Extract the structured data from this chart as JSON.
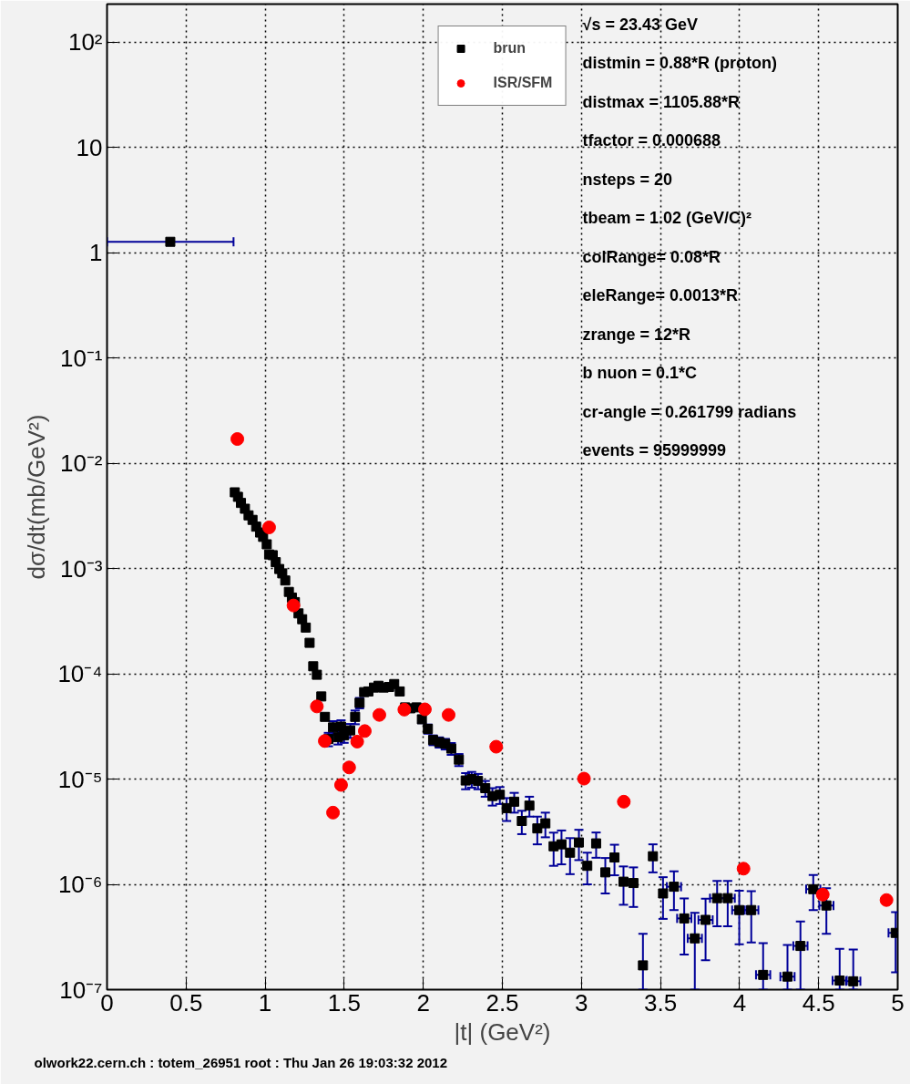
{
  "chart_data": {
    "type": "scatter",
    "xlabel": "|t| (GeV²)",
    "ylabel": "dσ/dt(mb/GeV²)",
    "xlim": [
      0,
      5
    ],
    "ylim": [
      1e-07,
      230
    ],
    "xticks": [
      0,
      0.5,
      1,
      1.5,
      2,
      2.5,
      3,
      3.5,
      4,
      4.5,
      5
    ],
    "yticks": [
      {
        "value": 1e-07,
        "label": "10⁻⁷"
      },
      {
        "value": 1e-06,
        "label": "10⁻⁶"
      },
      {
        "value": 1e-05,
        "label": "10⁻⁵"
      },
      {
        "value": 0.0001,
        "label": "10⁻⁴"
      },
      {
        "value": 0.001,
        "label": "10⁻³"
      },
      {
        "value": 0.01,
        "label": "10⁻²"
      },
      {
        "value": 0.1,
        "label": "10⁻¹"
      },
      1,
      10,
      {
        "value": 100,
        "label": "10²"
      }
    ],
    "log": true,
    "grid": true,
    "legend": "top",
    "annotations": [
      "√s    = 23.43 GeV",
      "distmin = 0.88*R (proton)",
      "distmax = 1105.88*R",
      "tfactor = 0.000688",
      "nsteps  = 20",
      "tbeam   = 1.02 (GeV/C)²",
      "colRange= 0.08*R",
      "eleRange= 0.0013*R",
      "zrange  = 12*R",
      "b nuon   = 0.1*C",
      "cr-angle = 0.261799 radians",
      "events  = 95999999",
      "olwork22.cern.ch : totem_26951 root : Thu Jan 26 19:03:32 2012"
    ],
    "series": [
      {
        "name": "brun",
        "marker": "square",
        "color": "#000000",
        "x": [
          0.4,
          0.808,
          0.828,
          0.847,
          0.872,
          0.895,
          0.92,
          0.943,
          0.968,
          0.987,
          1.01,
          1.025,
          1.048,
          1.067,
          1.089,
          1.108,
          1.127,
          1.15,
          1.169,
          1.188,
          1.211,
          1.234,
          1.257,
          1.281,
          1.304,
          1.327,
          1.355,
          1.378,
          1.4,
          1.429,
          1.461,
          1.48,
          1.499,
          1.538,
          1.569,
          1.597,
          1.626,
          1.653,
          1.688,
          1.717,
          1.749,
          1.784,
          1.816,
          1.851,
          1.885,
          1.918,
          1.957,
          1.991,
          2.029,
          2.062,
          2.101,
          2.139,
          2.177,
          2.225,
          2.268,
          2.306,
          2.346,
          2.392,
          2.437,
          2.484,
          2.527,
          2.575,
          2.623,
          2.671,
          2.721,
          2.772,
          2.824,
          2.874,
          2.928,
          2.984,
          3.037,
          3.093,
          3.151,
          3.209,
          3.266,
          3.329,
          3.389,
          3.452,
          3.516,
          3.585,
          3.65,
          3.717,
          3.785,
          3.858,
          3.925,
          3.998,
          4.074,
          4.149,
          4.303,
          4.385,
          4.466,
          4.549,
          4.633,
          4.719,
          4.987
        ],
        "values": [
          1.27,
          0.0053,
          0.0048,
          0.0042,
          0.0037,
          0.0032,
          0.0029,
          0.0025,
          0.0022,
          0.002,
          0.0017,
          0.00136,
          0.00134,
          0.00115,
          0.00099,
          0.0009,
          0.00077,
          0.0006,
          0.00053,
          0.00048,
          0.000375,
          0.00033,
          0.000275,
          0.000197,
          0.000118,
          9.8e-05,
          6.1e-05,
          3.9e-05,
          2.4e-05,
          3.1e-05,
          2.5e-05,
          3.15e-05,
          2.6e-05,
          2.9e-05,
          3.9e-05,
          5.3e-05,
          6.7e-05,
          6.8e-05,
          7.4e-05,
          7.7e-05,
          7.4e-05,
          7.5e-05,
          8e-05,
          6.8e-05,
          4.8e-05,
          4.7e-05,
          4.8e-05,
          3.7e-05,
          3e-05,
          2.35e-05,
          2.24e-05,
          2.16e-05,
          1.95e-05,
          1.53e-05,
          9.7e-06,
          1e-05,
          9.6e-06,
          8.2e-06,
          6.9e-06,
          7.1e-06,
          5.3e-06,
          6.1e-06,
          4e-06,
          5.6e-06,
          3.4e-06,
          3.8e-06,
          2.3e-06,
          2.4e-06,
          2e-06,
          2.5e-06,
          1.5e-06,
          2.45e-06,
          1.3e-06,
          1.8e-06,
          1.06e-06,
          1.03e-06,
          1.7e-07,
          1.85e-06,
          8.2e-07,
          9.5e-07,
          4.75e-07,
          3.07e-07,
          4.6e-07,
          7.4e-07,
          7.4e-07,
          5.7e-07,
          5.7e-07,
          1.38e-07,
          1.33e-07,
          2.6e-07,
          9e-07,
          6.3e-07,
          1.22e-07,
          1.2e-07,
          3.46e-07
        ],
        "errors": [
          null,
          null,
          null,
          null,
          null,
          null,
          null,
          null,
          null,
          null,
          null,
          null,
          null,
          null,
          null,
          null,
          null,
          null,
          null,
          null,
          null,
          null,
          null,
          null,
          null,
          null,
          null,
          null,
          3.5e-06,
          4.5e-06,
          3.7e-06,
          4.7e-06,
          3.9e-06,
          4.4e-06,
          5.8e-06,
          6e-06,
          null,
          null,
          5e-06,
          5e-06,
          5e-06,
          5e-06,
          5e-06,
          5e-06,
          null,
          null,
          null,
          3e-06,
          3e-06,
          2.5e-06,
          2.5e-06,
          2.5e-06,
          2.5e-06,
          2e-06,
          1.7e-06,
          1.7e-06,
          1.6e-06,
          1.4e-06,
          1.3e-06,
          1.3e-06,
          1.3e-06,
          1.3e-06,
          1e-06,
          1.2e-06,
          1e-06,
          1e-06,
          8e-07,
          8.5e-07,
          7.5e-07,
          8e-07,
          5e-07,
          6.6e-07,
          4.8e-07,
          5.8e-07,
          4.2e-07,
          4.2e-07,
          [
            1e-07,
            3.4e-07
          ],
          5.5e-07,
          3.5e-07,
          3.8e-07,
          2.6e-07,
          [
            1e-07,
            5.37e-07
          ],
          2.7e-07,
          3.4e-07,
          3.4e-07,
          3e-07,
          2.9e-07,
          [
            1e-07,
            2.76e-07
          ],
          [
            1e-07,
            2.66e-07
          ],
          [
            1e-07,
            4.45e-07
          ],
          3.3e-07,
          2.9e-07,
          [
            1e-07,
            2.44e-07
          ],
          [
            1e-07,
            2.4e-07
          ],
          2e-07
        ],
        "xerrors": [
          0.4,
          null,
          null,
          null,
          null,
          null,
          null,
          null,
          null,
          null,
          null,
          null,
          null,
          null,
          null,
          null,
          null,
          null,
          null,
          null,
          null,
          null,
          null,
          null,
          null,
          null,
          null,
          null,
          null,
          null,
          null,
          null,
          null,
          null,
          null,
          null,
          null,
          null,
          null,
          null,
          null,
          null,
          null,
          null,
          null,
          null,
          null,
          null,
          null,
          null,
          null,
          null,
          null,
          null,
          null,
          null,
          null,
          null,
          null,
          null,
          null,
          null,
          null,
          null,
          null,
          null,
          null,
          null,
          null,
          null,
          null,
          null,
          null,
          null,
          null,
          null,
          null,
          null,
          null,
          0.045,
          0.045,
          0.045,
          0.045,
          0.045,
          0.045,
          0.045,
          0.045,
          0.045,
          0.045,
          0.045,
          0.045,
          0.045,
          0.045,
          0.045,
          0.045
        ]
      },
      {
        "name": "ISR/SFM",
        "marker": "circle",
        "color": "#ff0000",
        "x": [
          0.824,
          1.025,
          1.179,
          1.327,
          1.377,
          1.429,
          1.48,
          1.531,
          1.582,
          1.63,
          1.722,
          1.88,
          2.01,
          2.16,
          2.461,
          3.016,
          3.268,
          4.025,
          4.526,
          4.929
        ],
        "values": [
          0.017,
          0.00246,
          0.000446,
          4.9e-05,
          2.3e-05,
          4.8e-06,
          8.8e-06,
          1.29e-05,
          2.27e-05,
          2.86e-05,
          4.07e-05,
          4.57e-05,
          4.6e-05,
          4.07e-05,
          2.03e-05,
          1.01e-05,
          6.1e-06,
          1.41e-06,
          8e-07,
          7.1e-07
        ]
      }
    ]
  }
}
